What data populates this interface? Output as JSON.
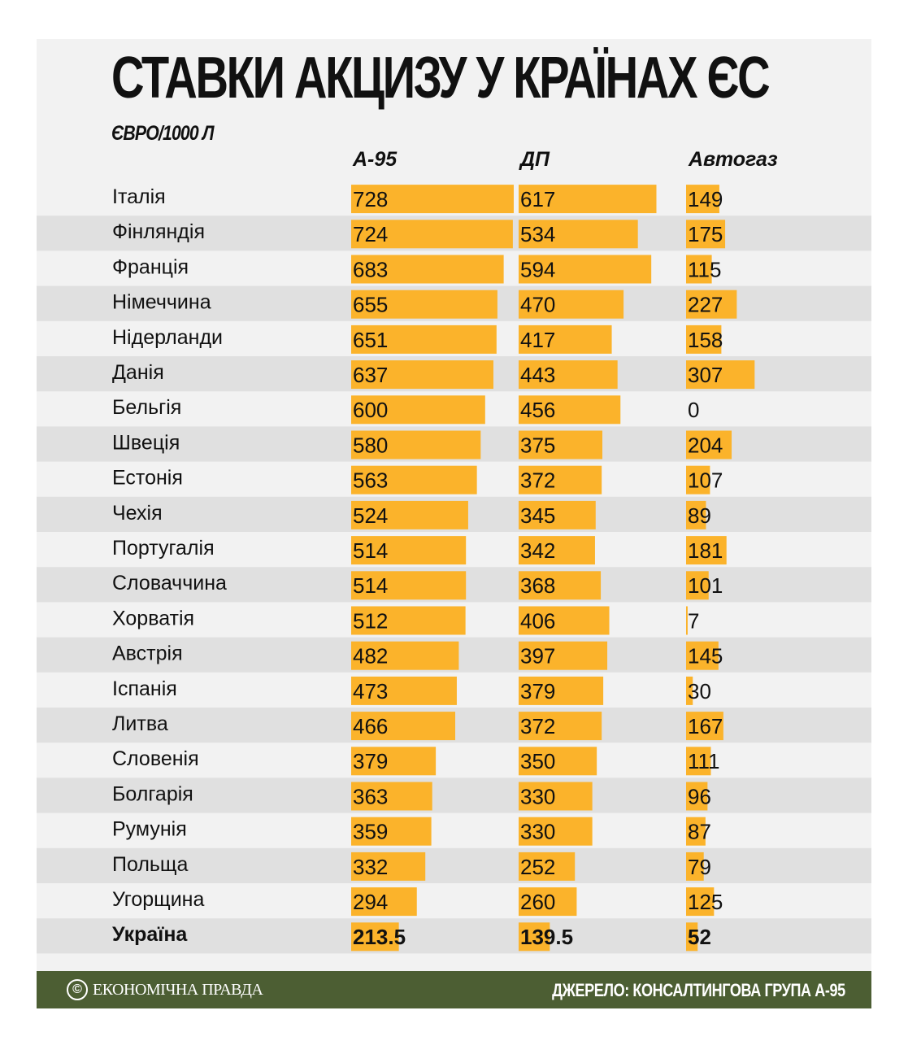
{
  "title": "СТАВКИ АКЦИЗУ У КРАЇНАХ ЄС",
  "subtitle": "ЄВРО/1000 Л",
  "chart_data": {
    "type": "bar",
    "series": [
      {
        "name": "А-95",
        "values": [
          728,
          724,
          683,
          655,
          651,
          637,
          600,
          580,
          563,
          524,
          514,
          514,
          512,
          482,
          473,
          466,
          379,
          363,
          359,
          332,
          294,
          213.5
        ]
      },
      {
        "name": "ДП",
        "values": [
          617,
          534,
          594,
          470,
          417,
          443,
          456,
          375,
          372,
          345,
          342,
          368,
          406,
          397,
          379,
          372,
          350,
          330,
          330,
          252,
          260,
          139.5
        ]
      },
      {
        "name": "Автогаз",
        "values": [
          149,
          175,
          115,
          227,
          158,
          307,
          0,
          204,
          107,
          89,
          181,
          101,
          7,
          145,
          30,
          167,
          111,
          96,
          87,
          79,
          125,
          52
        ]
      }
    ],
    "categories": [
      "Італія",
      "Фінляндія",
      "Франція",
      "Німеччина",
      "Нідерланди",
      "Данія",
      "Бельгія",
      "Швеція",
      "Естонія",
      "Чехія",
      "Португалія",
      "Словаччина",
      "Хорватія",
      "Австрія",
      "Іспанія",
      "Литва",
      "Словенія",
      "Болгарія",
      "Румунія",
      "Польща",
      "Угорщина",
      "Україна"
    ],
    "value_labels": [
      [
        "728",
        "724",
        "683",
        "655",
        "651",
        "637",
        "600",
        "580",
        "563",
        "524",
        "514",
        "514",
        "512",
        "482",
        "473",
        "466",
        "379",
        "363",
        "359",
        "332",
        "294",
        "213.5"
      ],
      [
        "617",
        "534",
        "594",
        "470",
        "417",
        "443",
        "456",
        "375",
        "372",
        "345",
        "342",
        "368",
        "406",
        "397",
        "379",
        "372",
        "350",
        "330",
        "330",
        "252",
        "260",
        "139.5"
      ],
      [
        "149",
        "175",
        "115",
        "227",
        "158",
        "307",
        "0",
        "204",
        "107",
        "89",
        "181",
        "101",
        "7",
        "145",
        "30",
        "167",
        "111",
        "96",
        "87",
        "79",
        "125",
        "52"
      ]
    ],
    "highlight_category": "Україна",
    "bar_color": "#fbb32b",
    "stripe_color": "#e0e0e0",
    "background_color": "#f2f2f2"
  },
  "footer": {
    "logo_mark": "©",
    "logo_text": "ЕКОНОМІЧНА ПРАВДА",
    "source": "ДЖЕРЕЛО: КОНСАЛТИНГОВА ГРУПА А-95",
    "color": "#4c5e33"
  }
}
